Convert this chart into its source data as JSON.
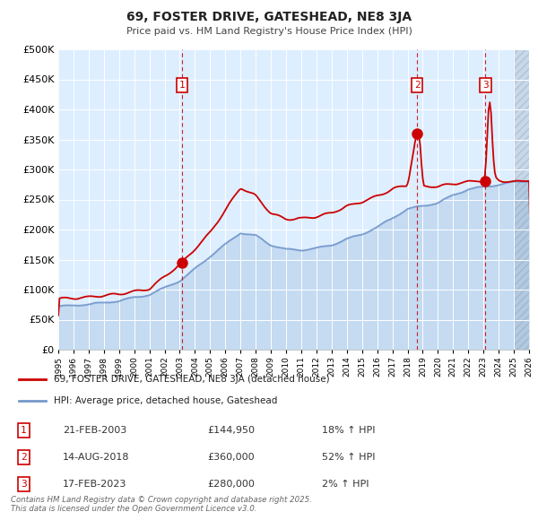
{
  "title": "69, FOSTER DRIVE, GATESHEAD, NE8 3JA",
  "subtitle": "Price paid vs. HM Land Registry's House Price Index (HPI)",
  "bg_color": "#ddeeff",
  "sale_color": "#cc0000",
  "hpi_color": "#7799cc",
  "sale_label": "69, FOSTER DRIVE, GATESHEAD, NE8 3JA (detached house)",
  "hpi_label": "HPI: Average price, detached house, Gateshead",
  "purchases": [
    {
      "label": "1",
      "date_str": "21-FEB-2003",
      "price": 144950,
      "pct": "18%",
      "direction": "↑",
      "date_x": 2003.13
    },
    {
      "label": "2",
      "date_str": "14-AUG-2018",
      "price": 360000,
      "pct": "52%",
      "direction": "↑",
      "date_x": 2018.62
    },
    {
      "label": "3",
      "date_str": "17-FEB-2023",
      "price": 280000,
      "pct": "2%",
      "direction": "↑",
      "date_x": 2023.13
    }
  ],
  "ylim": [
    0,
    500000
  ],
  "yticks": [
    0,
    50000,
    100000,
    150000,
    200000,
    250000,
    300000,
    350000,
    400000,
    450000,
    500000
  ],
  "xlim_start": 1995,
  "xlim_end": 2026,
  "xticks": [
    1995,
    1996,
    1997,
    1998,
    1999,
    2000,
    2001,
    2002,
    2003,
    2004,
    2005,
    2006,
    2007,
    2008,
    2009,
    2010,
    2011,
    2012,
    2013,
    2014,
    2015,
    2016,
    2017,
    2018,
    2019,
    2020,
    2021,
    2022,
    2023,
    2024,
    2025,
    2026
  ],
  "footnote": "Contains HM Land Registry data © Crown copyright and database right 2025.\nThis data is licensed under the Open Government Licence v3.0."
}
